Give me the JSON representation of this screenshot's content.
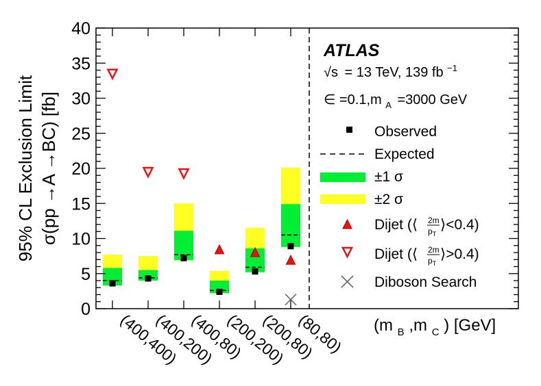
{
  "chart_data": {
    "type": "bar",
    "title": "",
    "experiment": "ATLAS",
    "energy_line": "= 13 TeV, 139 fb",
    "energy_sqrt_symbol": "√s",
    "lumi_superscript": "−1",
    "param_line_1": "∈ =0.1,m",
    "param_sub": "A",
    "param_line_2": "=3000 GeV",
    "ylabel_line1": "95% CL Exclusion Limit",
    "ylabel_line2": "σ(pp →A →BC) [fb]",
    "xlabel": "(m_B ,m_C ) [GeV]",
    "xlabel_parts": {
      "open": "(m",
      "sub_b": "B",
      "mid": " ,m",
      "sub_c": "C",
      "close": " ) [GeV]"
    },
    "ylim": [
      0,
      40
    ],
    "yticks": [
      "0",
      "5",
      "10",
      "15",
      "20",
      "25",
      "30",
      "35",
      "40"
    ],
    "categories": [
      "(400,400)",
      "(400,200)",
      "(400,80)",
      "(200,200)",
      "(200,80)",
      "(80,80)"
    ],
    "series": [
      {
        "name": "Observed",
        "values": [
          3.6,
          4.3,
          7.2,
          2.4,
          5.3,
          8.9
        ]
      },
      {
        "name": "Expected",
        "values": [
          4.0,
          4.4,
          7.7,
          2.6,
          5.9,
          10.5
        ]
      },
      {
        "name": "±1 σ",
        "low": [
          3.3,
          4.0,
          6.9,
          2.2,
          5.2,
          8.8
        ],
        "high": [
          5.8,
          5.5,
          11.1,
          4.0,
          8.6,
          14.9
        ]
      },
      {
        "name": "±2 σ",
        "low": [
          3.3,
          4.0,
          6.9,
          2.2,
          5.2,
          8.8
        ],
        "high": [
          7.7,
          7.5,
          15.0,
          5.4,
          11.5,
          20.1
        ]
      },
      {
        "name": "Dijet <0.4",
        "values": [
          null,
          null,
          null,
          8.4,
          8.0,
          6.9
        ]
      },
      {
        "name": "Dijet >0.4",
        "values": [
          33.5,
          19.5,
          19.3,
          null,
          null,
          null
        ]
      },
      {
        "name": "Diboson Search",
        "values": [
          null,
          null,
          null,
          null,
          null,
          1.3
        ]
      }
    ],
    "legend": {
      "position": "right",
      "observed": "Observed",
      "expected": "Expected",
      "one_sigma": "±1 σ",
      "two_sigma": "±2 σ",
      "dijet_low": "Dijet (⟨",
      "dijet_low_tail": "⟩<0.4)",
      "dijet_high": "Dijet (⟨",
      "dijet_high_tail": "⟩>0.4)",
      "frac_num": "2m",
      "frac_den": "p",
      "frac_den_sub": "T",
      "diboson": "Diboson Search"
    },
    "colors": {
      "one_sigma": "#00ee33",
      "two_sigma": "#ffff22",
      "dijet": "#ee1111",
      "diboson": "#666666"
    }
  }
}
